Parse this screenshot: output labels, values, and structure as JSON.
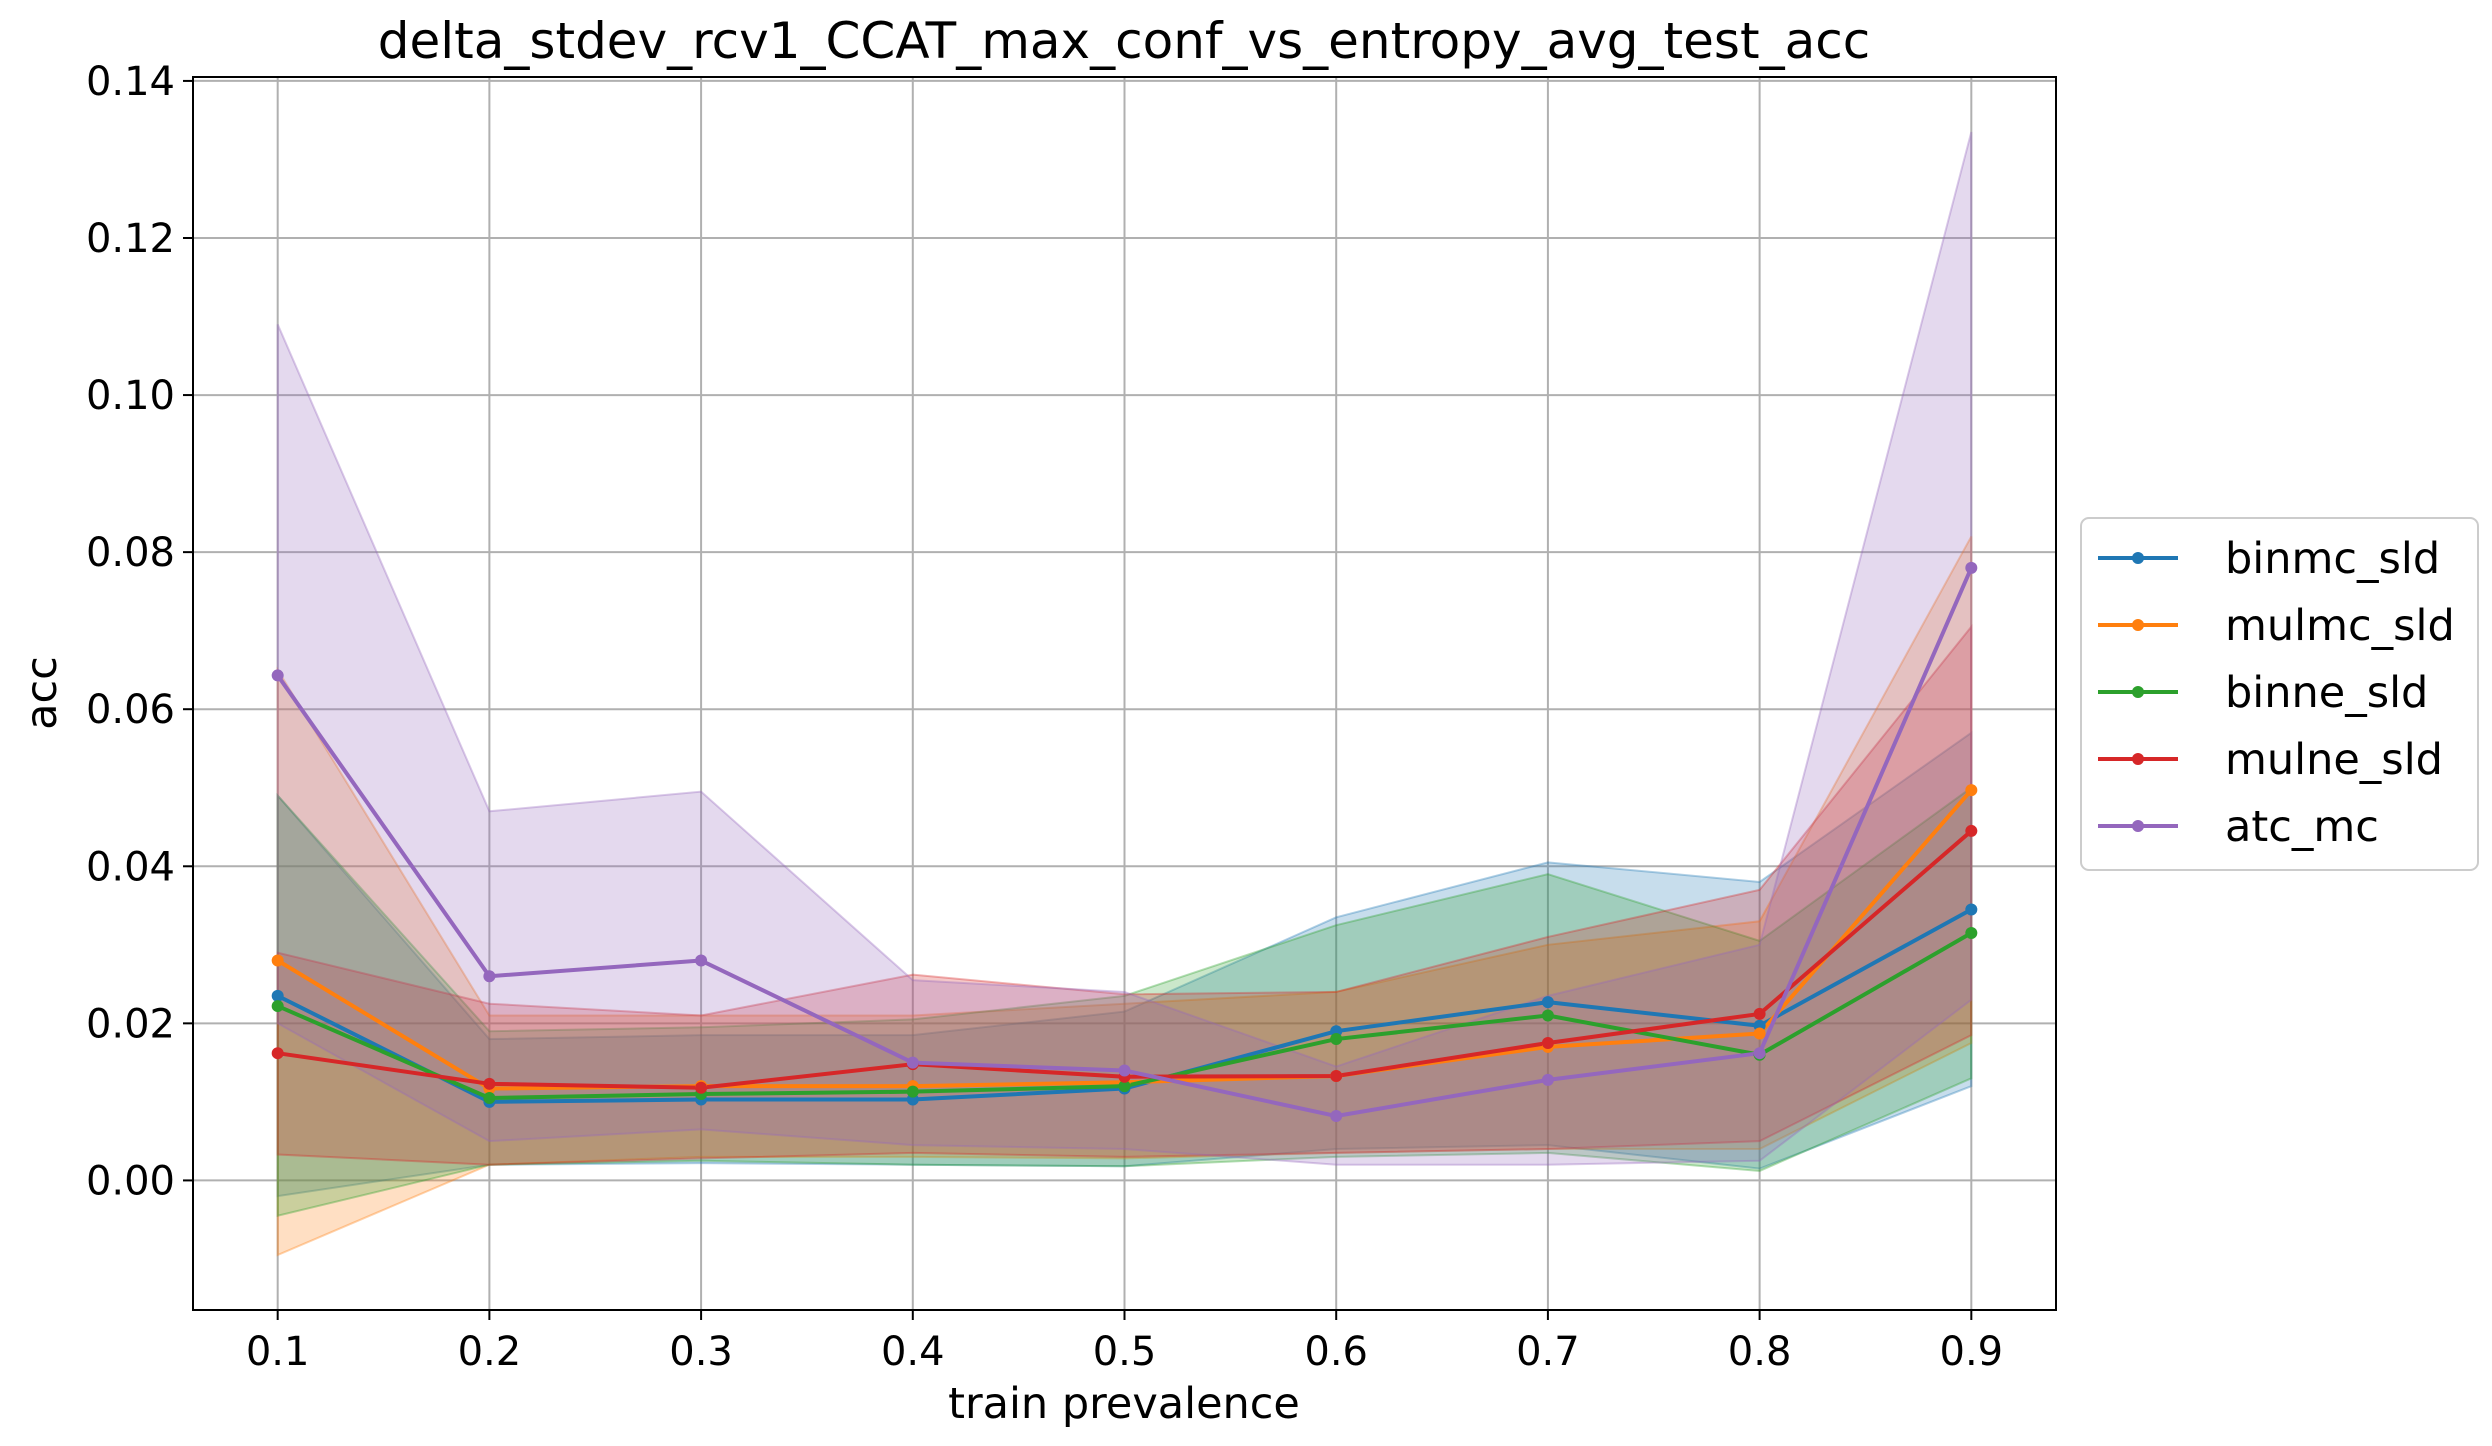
{
  "chart_data": {
    "type": "line",
    "title": "delta_stdev_rcv1_CCAT_max_conf_vs_entropy_avg_test_acc",
    "xlabel": "train prevalence",
    "ylabel": "acc",
    "x": [
      0.1,
      0.2,
      0.3,
      0.4,
      0.5,
      0.6,
      0.7,
      0.8,
      0.9
    ],
    "x_tick_labels": [
      "0.1",
      "0.2",
      "0.3",
      "0.4",
      "0.5",
      "0.6",
      "0.7",
      "0.8",
      "0.9"
    ],
    "y_tick_values": [
      0.0,
      0.02,
      0.04,
      0.06,
      0.08,
      0.1,
      0.12,
      0.14
    ],
    "y_tick_labels": [
      "0.00",
      "0.02",
      "0.04",
      "0.06",
      "0.08",
      "0.10",
      "0.12",
      "0.14"
    ],
    "xlim": [
      0.06,
      0.94
    ],
    "ylim": [
      -0.0165,
      0.1405
    ],
    "grid": true,
    "legend_position": "outside-right",
    "series": [
      {
        "name": "binmc_sld",
        "color": "#1f77b4",
        "values": [
          0.0235,
          0.01,
          0.0103,
          0.0103,
          0.0117,
          0.019,
          0.0227,
          0.0197,
          0.0345
        ],
        "lower": [
          -0.002,
          0.002,
          0.0022,
          0.002,
          0.0018,
          0.004,
          0.0045,
          0.0015,
          0.012
        ],
        "upper": [
          0.049,
          0.018,
          0.0185,
          0.0185,
          0.0215,
          0.0335,
          0.0405,
          0.038,
          0.057
        ]
      },
      {
        "name": "mulmc_sld",
        "color": "#ff7f0e",
        "values": [
          0.028,
          0.0117,
          0.012,
          0.012,
          0.0125,
          0.0133,
          0.017,
          0.0187,
          0.0497
        ],
        "lower": [
          -0.0095,
          0.002,
          0.003,
          0.003,
          0.0028,
          0.0035,
          0.004,
          0.004,
          0.0175
        ],
        "upper": [
          0.065,
          0.021,
          0.021,
          0.021,
          0.0225,
          0.024,
          0.03,
          0.033,
          0.082
        ]
      },
      {
        "name": "binne_sld",
        "color": "#2ca02c",
        "values": [
          0.0222,
          0.0105,
          0.011,
          0.0113,
          0.012,
          0.018,
          0.021,
          0.016,
          0.0315
        ],
        "lower": [
          -0.0045,
          0.002,
          0.0025,
          0.002,
          0.0018,
          0.003,
          0.0035,
          0.0012,
          0.013
        ],
        "upper": [
          0.049,
          0.019,
          0.0195,
          0.0205,
          0.0235,
          0.0325,
          0.039,
          0.0305,
          0.05
        ]
      },
      {
        "name": "mulne_sld",
        "color": "#d62728",
        "values": [
          0.0162,
          0.0123,
          0.0118,
          0.0148,
          0.0132,
          0.0133,
          0.0175,
          0.0212,
          0.0445
        ],
        "lower": [
          0.0033,
          0.002,
          0.0028,
          0.0035,
          0.003,
          0.0035,
          0.004,
          0.005,
          0.0185
        ],
        "upper": [
          0.029,
          0.0225,
          0.021,
          0.0262,
          0.0237,
          0.024,
          0.031,
          0.037,
          0.0705
        ]
      },
      {
        "name": "atc_mc",
        "color": "#9467bd",
        "values": [
          0.0643,
          0.026,
          0.028,
          0.015,
          0.014,
          0.0082,
          0.0128,
          0.0162,
          0.078
        ],
        "lower": [
          0.02,
          0.005,
          0.0065,
          0.0045,
          0.004,
          0.002,
          0.002,
          0.0025,
          0.023
        ],
        "upper": [
          0.109,
          0.047,
          0.0495,
          0.0255,
          0.024,
          0.0145,
          0.0235,
          0.03,
          0.1335
        ]
      }
    ]
  }
}
